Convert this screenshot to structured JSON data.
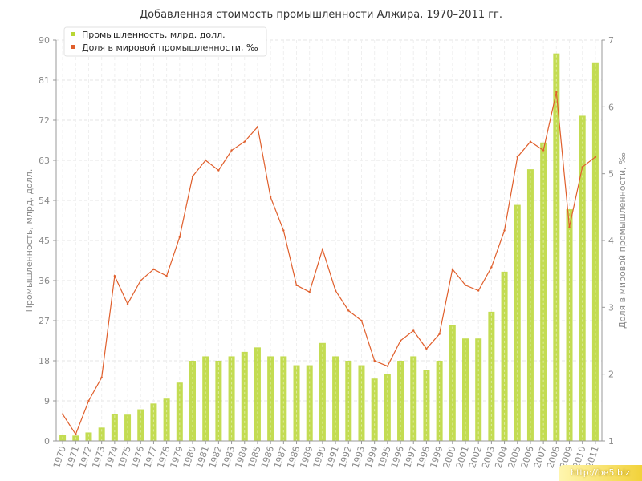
{
  "chart_data": {
    "type": "bar+line",
    "title": "Добавленная стоимость промышленности Алжира, 1970–2011 гг.",
    "ylabel": "Промышленность, млрд. долл.",
    "y2label": "Доля в мировой промышленности, ‰",
    "ylim": [
      0,
      90
    ],
    "y2lim": [
      1,
      7
    ],
    "yticks": [
      0,
      9,
      18,
      27,
      36,
      45,
      54,
      63,
      72,
      81,
      90
    ],
    "y2ticks": [
      1,
      2,
      3,
      4,
      5,
      6,
      7
    ],
    "grid": true,
    "legend_position": "top-left",
    "categories": [
      "1970",
      "1971",
      "1972",
      "1973",
      "1974",
      "1975",
      "1976",
      "1977",
      "1978",
      "1979",
      "1980",
      "1981",
      "1982",
      "1983",
      "1984",
      "1985",
      "1986",
      "1987",
      "1988",
      "1989",
      "1990",
      "1991",
      "1992",
      "1993",
      "1994",
      "1995",
      "1996",
      "1997",
      "1998",
      "1999",
      "2000",
      "2001",
      "2002",
      "2003",
      "2004",
      "2005",
      "2006",
      "2007",
      "2008",
      "2009",
      "2010",
      "2011"
    ],
    "series": [
      {
        "name": "Промышленность, млрд. долл.",
        "type": "bar",
        "axis": "left",
        "color": "#b8d634",
        "values": [
          1.3,
          1.2,
          1.9,
          3.0,
          6.1,
          5.9,
          7.1,
          8.4,
          9.5,
          13.1,
          18.0,
          19.0,
          18.0,
          19.0,
          20.0,
          21.0,
          19.0,
          19.0,
          17.0,
          17.0,
          22.0,
          19.0,
          18.0,
          17.0,
          14.0,
          15.0,
          18.0,
          19.0,
          16.0,
          18.0,
          26.0,
          23.0,
          23.0,
          29.0,
          38.0,
          53.0,
          61.0,
          67.0,
          87.0,
          52.0,
          73.0,
          85.0
        ]
      },
      {
        "name": "Доля в мировой промышленности, ‰",
        "type": "line",
        "axis": "right",
        "color": "#e05f2c",
        "values": [
          1.4,
          1.1,
          1.6,
          1.95,
          3.47,
          3.05,
          3.4,
          3.57,
          3.47,
          4.05,
          4.96,
          5.2,
          5.05,
          5.35,
          5.48,
          5.7,
          4.65,
          4.15,
          3.33,
          3.23,
          3.87,
          3.25,
          2.95,
          2.8,
          2.2,
          2.12,
          2.5,
          2.65,
          2.38,
          2.6,
          3.57,
          3.33,
          3.25,
          3.6,
          4.15,
          5.25,
          5.48,
          5.35,
          6.22,
          4.2,
          5.1,
          5.25
        ]
      }
    ]
  },
  "watermark": "http://be5.biz"
}
